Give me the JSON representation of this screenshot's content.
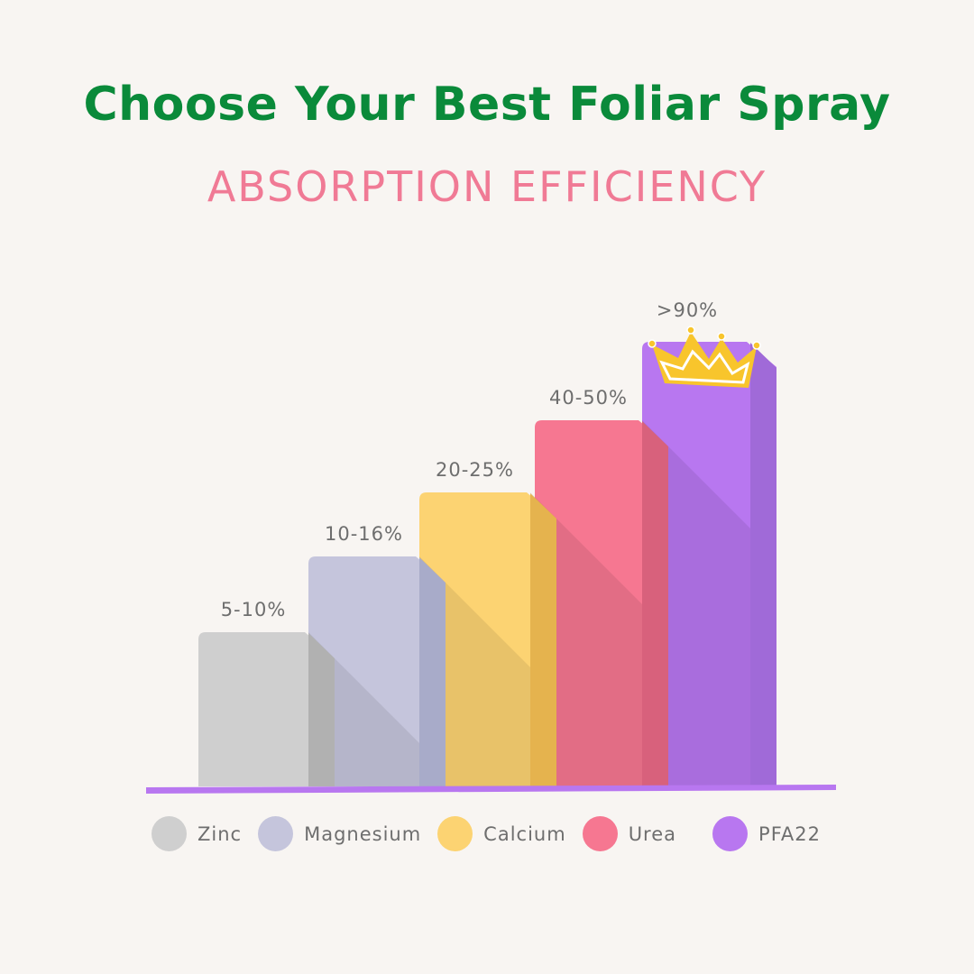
{
  "title": "Choose Your Best Foliar Spray",
  "subtitle": "ABSORPTION EFFICIENCY",
  "chart_data": {
    "type": "bar",
    "title": "Choose Your Best Foliar Spray",
    "subtitle": "ABSORPTION EFFICIENCY",
    "categories": [
      "Zinc",
      "Magnesium",
      "Calcium",
      "Urea",
      "PFA22"
    ],
    "value_labels": [
      "5-10%",
      "10-16%",
      "20-25%",
      "40-50%",
      ">90%"
    ],
    "values_range_percent": [
      [
        5,
        10
      ],
      [
        10,
        16
      ],
      [
        20,
        25
      ],
      [
        40,
        50
      ],
      [
        90,
        100
      ]
    ],
    "colors": [
      "#cfcfcf",
      "#c5c5dc",
      "#fcd372",
      "#f67791",
      "#b877f0"
    ],
    "side_colors": [
      "#b1b1b1",
      "#a8abc9",
      "#e5b34e",
      "#d8617c",
      "#a06ad8"
    ],
    "baseline_color": "#b877f0",
    "annotation": "crown-icon on PFA22",
    "legend_position": "bottom",
    "grid": false
  }
}
